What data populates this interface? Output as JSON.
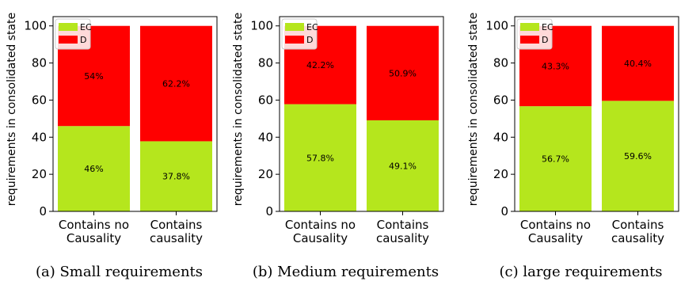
{
  "chart_data": [
    {
      "type": "bar",
      "stacked": true,
      "categories": [
        "Contains no\nCausality",
        "Contains\ncausality"
      ],
      "series": [
        {
          "name": "EC",
          "color": "#b5e61d",
          "values": [
            46,
            37.8
          ],
          "labels": [
            "46%",
            "37.8%"
          ]
        },
        {
          "name": "D",
          "color": "#ff0000",
          "values": [
            54,
            62.2
          ],
          "labels": [
            "54%",
            "62.2%"
          ]
        }
      ],
      "ylabel": "requirements in consolidated state",
      "ylim": [
        0,
        105
      ],
      "yticks": [
        0,
        20,
        40,
        60,
        80,
        100
      ],
      "legend": "top-left",
      "caption": "(a) Small requirements"
    },
    {
      "type": "bar",
      "stacked": true,
      "categories": [
        "Contains no\nCausality",
        "Contains\ncausality"
      ],
      "series": [
        {
          "name": "EC",
          "color": "#b5e61d",
          "values": [
            57.8,
            49.1
          ],
          "labels": [
            "57.8%",
            "49.1%"
          ]
        },
        {
          "name": "D",
          "color": "#ff0000",
          "values": [
            42.2,
            50.9
          ],
          "labels": [
            "42.2%",
            "50.9%"
          ]
        }
      ],
      "ylabel": "requirements in consolidated state",
      "ylim": [
        0,
        105
      ],
      "yticks": [
        0,
        20,
        40,
        60,
        80,
        100
      ],
      "legend": "top-left",
      "caption": "(b) Medium requirements"
    },
    {
      "type": "bar",
      "stacked": true,
      "categories": [
        "Contains no\nCausality",
        "Contains\ncausality"
      ],
      "series": [
        {
          "name": "EC",
          "color": "#b5e61d",
          "values": [
            56.7,
            59.6
          ],
          "labels": [
            "56.7%",
            "59.6%"
          ]
        },
        {
          "name": "D",
          "color": "#ff0000",
          "values": [
            43.3,
            40.4
          ],
          "labels": [
            "43.3%",
            "40.4%"
          ]
        }
      ],
      "ylabel": "requirements in consolidated state",
      "ylim": [
        0,
        105
      ],
      "yticks": [
        0,
        20,
        40,
        60,
        80,
        100
      ],
      "legend": "top-left",
      "caption": "(c) large requirements"
    }
  ]
}
